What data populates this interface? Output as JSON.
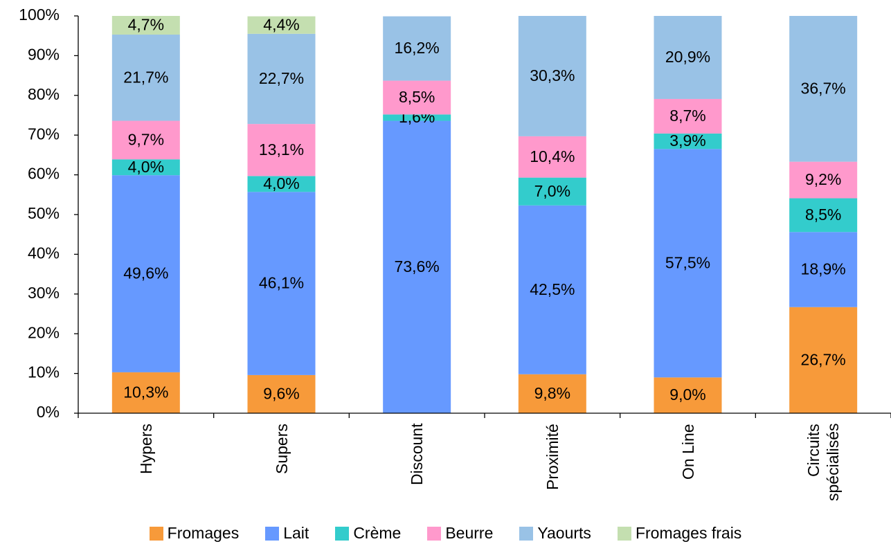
{
  "chart_data": {
    "type": "stacked_bar",
    "categories": [
      "Hypers",
      "Supers",
      "Discount",
      "Proximité",
      "On Line",
      "Circuits spécialisés"
    ],
    "series": [
      {
        "name": "Fromages",
        "color": "#f79a3a",
        "values": [
          10.3,
          9.6,
          null,
          9.8,
          9.0,
          26.7
        ],
        "value_labels": [
          "10,3%",
          "9,6%",
          null,
          "9,8%",
          "9,0%",
          "26,7%"
        ]
      },
      {
        "name": "Lait",
        "color": "#6699ff",
        "values": [
          49.6,
          46.1,
          73.6,
          42.5,
          57.5,
          18.9
        ],
        "value_labels": [
          "49,6%",
          "46,1%",
          "73,6%",
          "42,5%",
          "57,5%",
          "18,9%"
        ]
      },
      {
        "name": "Crème",
        "color": "#33cccc",
        "values": [
          4.0,
          4.0,
          1.6,
          7.0,
          3.9,
          8.5
        ],
        "value_labels": [
          "4,0%",
          "4,0%",
          "1,6%",
          "7,0%",
          "3,9%",
          "8,5%"
        ]
      },
      {
        "name": "Beurre",
        "color": "#ff99cc",
        "values": [
          9.7,
          13.1,
          8.5,
          10.4,
          8.7,
          9.2
        ],
        "value_labels": [
          "9,7%",
          "13,1%",
          "8,5%",
          "10,4%",
          "8,7%",
          "9,2%"
        ]
      },
      {
        "name": "Yaourts",
        "color": "#99c2e6",
        "values": [
          21.7,
          22.7,
          16.2,
          30.3,
          20.9,
          36.7
        ],
        "value_labels": [
          "21,7%",
          "22,7%",
          "16,2%",
          "30,3%",
          "20,9%",
          "36,7%"
        ]
      },
      {
        "name": "Fromages frais",
        "color": "#c4dfb0",
        "values": [
          4.7,
          4.4,
          null,
          null,
          null,
          null
        ],
        "value_labels": [
          "4,7%",
          "4,4%",
          null,
          null,
          null,
          null
        ]
      }
    ],
    "ylim": [
      0,
      100
    ],
    "yticks": [
      {
        "value": 0,
        "label": "0%"
      },
      {
        "value": 10,
        "label": "10%"
      },
      {
        "value": 20,
        "label": "20%"
      },
      {
        "value": 30,
        "label": "30%"
      },
      {
        "value": 40,
        "label": "40%"
      },
      {
        "value": 50,
        "label": "50%"
      },
      {
        "value": 60,
        "label": "60%"
      },
      {
        "value": 70,
        "label": "70%"
      },
      {
        "value": 80,
        "label": "80%"
      },
      {
        "value": 90,
        "label": "90%"
      },
      {
        "value": 100,
        "label": "100%"
      }
    ],
    "legend": "bottom"
  }
}
